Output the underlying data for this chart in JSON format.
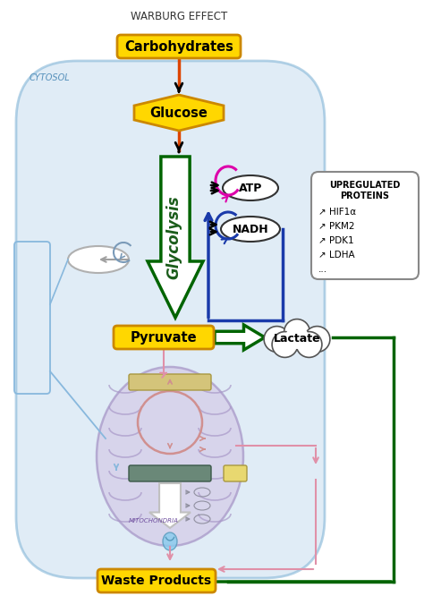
{
  "title": "WARBURG EFFECT",
  "cell_color": "#c8ddf0",
  "cell_edge_color": "#7ab0d4",
  "mito_color": "#d4cce8",
  "mito_edge_color": "#a898c8",
  "box_yellow_fill": "#FFD700",
  "box_yellow_edge": "#cc8800",
  "arrow_green": "#006400",
  "arrow_red": "#cc3300",
  "arrow_blue": "#1a3aaa",
  "arrow_pink": "#e090a8",
  "arrow_gray": "#909090",
  "text_dark": "#111111",
  "cytosol_label": "CYTOSOL",
  "mito_label": "MITOCHONDRIA",
  "carbohydrates_label": "Carbohydrates",
  "glucose_label": "Glucose",
  "glycolysis_label": "Glycolysis",
  "pyruvate_label": "Pyruvate",
  "lactate_label": "Lactate",
  "atp_label": "ATP",
  "nadh_label": "NADH",
  "waste_label": "Waste Products",
  "upregulated_title1": "UPREGULATED",
  "upregulated_title2": "PROTEINS",
  "upregulated_items": [
    "↗ HIF1α",
    "↗ PKM2",
    "↗ PDK1",
    "↗ LDHA",
    "..."
  ]
}
